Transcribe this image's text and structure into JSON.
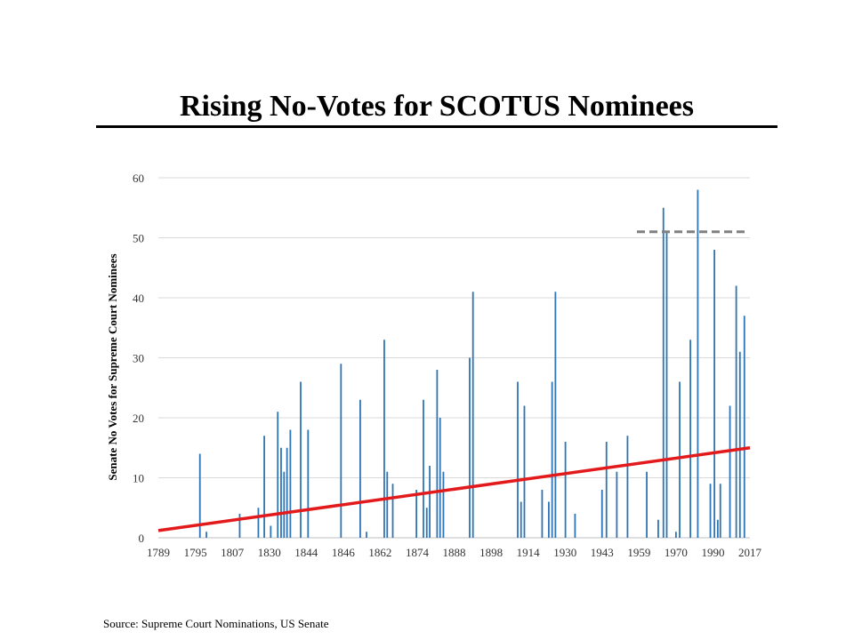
{
  "title": "Rising No-Votes for SCOTUS Nominees",
  "source": "Source: Supreme Court Nominations, US Senate",
  "chart_data": {
    "type": "bar",
    "ylabel": "Senate No Votes for Supreme Court Nominees",
    "ylim": [
      0,
      60
    ],
    "yticks": [
      0,
      10,
      20,
      30,
      40,
      50,
      60
    ],
    "grid": true,
    "xlim": [
      1789,
      2017
    ],
    "xtick_labels": [
      "1789",
      "1795",
      "1807",
      "1830",
      "1844",
      "1846",
      "1862",
      "1874",
      "1888",
      "1898",
      "1914",
      "1930",
      "1943",
      "1959",
      "1970",
      "1990",
      "2017"
    ],
    "bar_color": "#2e75b6",
    "bars": [
      {
        "x": 1.124,
        "value": 14
      },
      {
        "x": 1.3,
        "value": 1
      },
      {
        "x": 2.2,
        "value": 4
      },
      {
        "x": 2.705,
        "value": 5
      },
      {
        "x": 2.865,
        "value": 17
      },
      {
        "x": 3.04,
        "value": 2
      },
      {
        "x": 3.23,
        "value": 21
      },
      {
        "x": 3.32,
        "value": 15
      },
      {
        "x": 3.4,
        "value": 11
      },
      {
        "x": 3.48,
        "value": 15
      },
      {
        "x": 3.57,
        "value": 18
      },
      {
        "x": 3.85,
        "value": 26
      },
      {
        "x": 4.05,
        "value": 18
      },
      {
        "x": 4.94,
        "value": 29
      },
      {
        "x": 5.46,
        "value": 23
      },
      {
        "x": 5.63,
        "value": 1
      },
      {
        "x": 6.11,
        "value": 33
      },
      {
        "x": 6.19,
        "value": 11
      },
      {
        "x": 6.34,
        "value": 9
      },
      {
        "x": 6.98,
        "value": 8
      },
      {
        "x": 7.17,
        "value": 23
      },
      {
        "x": 7.26,
        "value": 5
      },
      {
        "x": 7.34,
        "value": 12
      },
      {
        "x": 7.54,
        "value": 28
      },
      {
        "x": 7.62,
        "value": 20
      },
      {
        "x": 7.71,
        "value": 11
      },
      {
        "x": 8.42,
        "value": 30
      },
      {
        "x": 8.51,
        "value": 41
      },
      {
        "x": 9.72,
        "value": 26
      },
      {
        "x": 9.81,
        "value": 6
      },
      {
        "x": 9.9,
        "value": 22
      },
      {
        "x": 10.38,
        "value": 8
      },
      {
        "x": 10.56,
        "value": 6
      },
      {
        "x": 10.65,
        "value": 26
      },
      {
        "x": 10.74,
        "value": 41
      },
      {
        "x": 11.01,
        "value": 16
      },
      {
        "x": 11.27,
        "value": 4
      },
      {
        "x": 12.0,
        "value": 8
      },
      {
        "x": 12.12,
        "value": 16
      },
      {
        "x": 12.4,
        "value": 11
      },
      {
        "x": 12.69,
        "value": 17
      },
      {
        "x": 13.21,
        "value": 11
      },
      {
        "x": 13.52,
        "value": 3
      },
      {
        "x": 13.66,
        "value": 55
      },
      {
        "x": 13.75,
        "value": 51
      },
      {
        "x": 14.0,
        "value": 1
      },
      {
        "x": 14.1,
        "value": 26
      },
      {
        "x": 14.39,
        "value": 33
      },
      {
        "x": 14.59,
        "value": 58
      },
      {
        "x": 14.93,
        "value": 9
      },
      {
        "x": 15.04,
        "value": 48
      },
      {
        "x": 15.13,
        "value": 3
      },
      {
        "x": 15.2,
        "value": 9
      },
      {
        "x": 15.46,
        "value": 22
      },
      {
        "x": 15.63,
        "value": 42
      },
      {
        "x": 15.73,
        "value": 31
      },
      {
        "x": 15.85,
        "value": 37
      }
    ],
    "trendline": {
      "color": "#e31a1c",
      "start": 1.2,
      "end": 15
    }
  }
}
